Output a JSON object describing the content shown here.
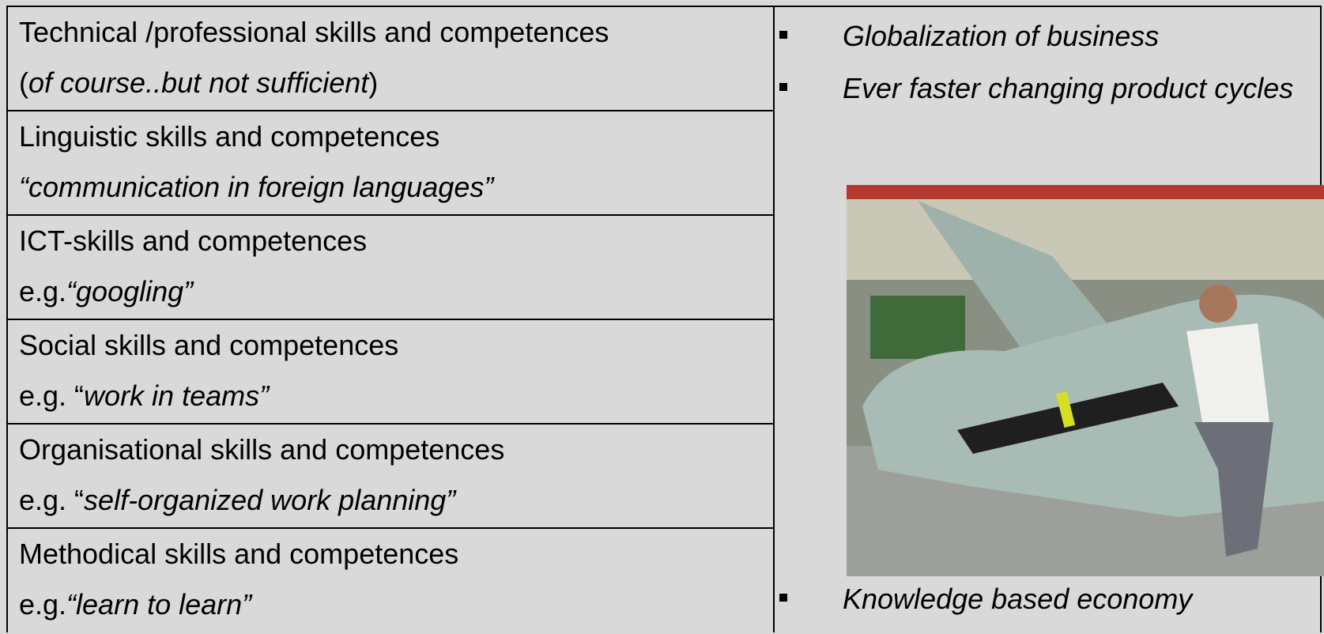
{
  "table": {
    "rows": [
      {
        "title": "Technical /professional skills and competences",
        "note": [
          {
            "text": "(",
            "italic": false
          },
          {
            "text": "of course..but not sufficient",
            "italic": true
          },
          {
            "text": ")",
            "italic": false
          }
        ]
      },
      {
        "title": "Linguistic skills and competences",
        "note": [
          {
            "text": "“communication in foreign languages”",
            "italic": true
          }
        ]
      },
      {
        "title": "ICT-skills and competences",
        "note": [
          {
            "text": "e.g.",
            "italic": false
          },
          {
            "text": "“googling”",
            "italic": true
          }
        ]
      },
      {
        "title": "Social skills and competences",
        "note": [
          {
            "text": "e.g. “",
            "italic": false
          },
          {
            "text": "work in teams”",
            "italic": true
          }
        ]
      },
      {
        "title": "Organisational skills and competences",
        "note": [
          {
            "text": "e.g. “",
            "italic": false
          },
          {
            "text": "self-organized work planning”",
            "italic": true
          }
        ]
      },
      {
        "title": "Methodical skills and competences",
        "note": [
          {
            "text": "e.g.",
            "italic": false
          },
          {
            "text": "“learn to learn”",
            "italic": true
          }
        ]
      }
    ]
  },
  "bullets": [
    "Globalization of business",
    "Ever faster changing product cycles",
    "Knowledge based economy"
  ]
}
